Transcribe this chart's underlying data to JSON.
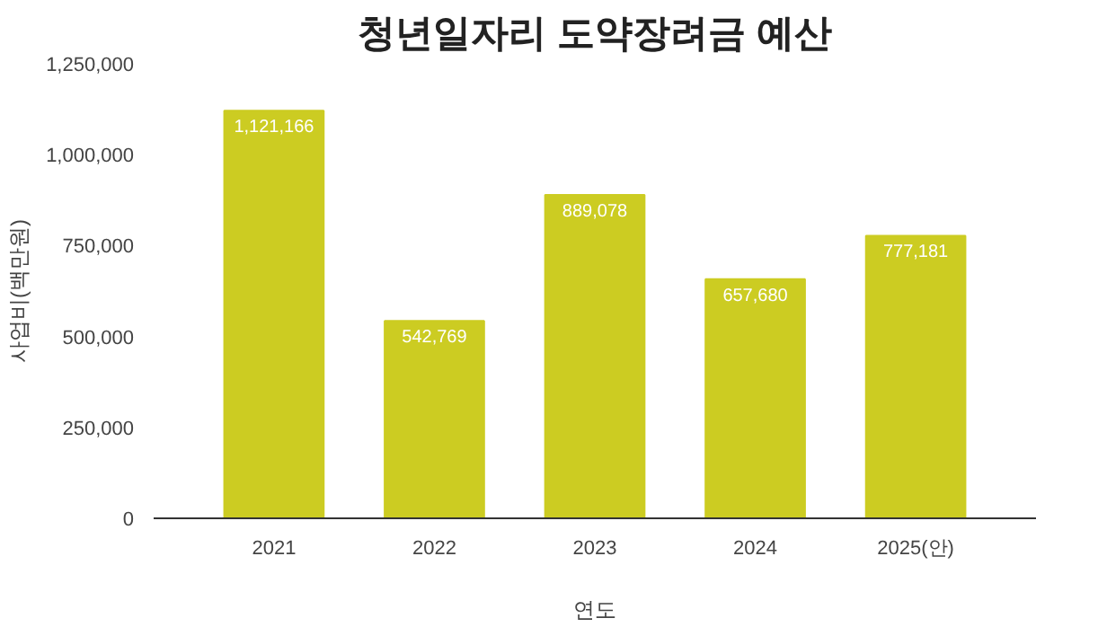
{
  "chart_data": {
    "type": "bar",
    "title": "청년일자리 도약장려금 예산",
    "xlabel": "연도",
    "ylabel": "사업비(백만원)",
    "categories": [
      "2021",
      "2022",
      "2023",
      "2024",
      "2025(안)"
    ],
    "values": [
      1121166,
      542769,
      889078,
      657680,
      777181
    ],
    "color": "#cccc22",
    "value_labels": [
      "1,121,166",
      "542,769",
      "889,078",
      "657,680",
      "777,181"
    ],
    "ylim": [
      0,
      1250000
    ],
    "yticks": [
      {
        "value": 0,
        "label": "0"
      },
      {
        "value": 250000,
        "label": "250,000"
      },
      {
        "value": 500000,
        "label": "500,000"
      },
      {
        "value": 750000,
        "label": "750,000"
      },
      {
        "value": 1000000,
        "label": "1,000,000"
      },
      {
        "value": 1250000,
        "label": "1,250,000"
      }
    ],
    "grid": false
  }
}
